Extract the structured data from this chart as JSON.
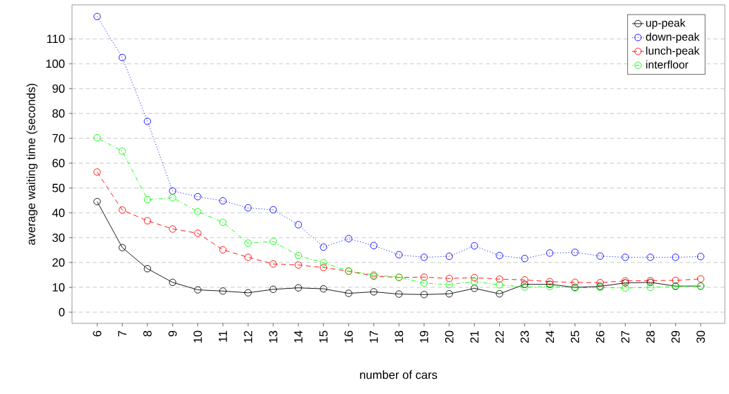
{
  "chart_data": {
    "type": "line",
    "xlabel": "number of cars",
    "ylabel": "average waiting time (seconds)",
    "categories": [
      "6",
      "7",
      "8",
      "9",
      "10",
      "11",
      "12",
      "13",
      "14",
      "15",
      "16",
      "17",
      "18",
      "19",
      "20",
      "21",
      "22",
      "23",
      "24",
      "25",
      "26",
      "27",
      "28",
      "29",
      "30"
    ],
    "series": [
      {
        "name": "up-peak",
        "color": "#000000",
        "line_style": "solid",
        "values": [
          44.5,
          26,
          17.5,
          12,
          9,
          8.5,
          7.8,
          9.2,
          9.8,
          9.4,
          7.6,
          8.2,
          7.3,
          7.1,
          7.4,
          9.6,
          7.4,
          11.2,
          11.2,
          10,
          10.4,
          11.8,
          12,
          10.5,
          10.5
        ]
      },
      {
        "name": "down-peak",
        "color": "#0000ff",
        "line_style": "dotted",
        "values": [
          119,
          102.5,
          76.8,
          48.8,
          46.5,
          44.8,
          42,
          41.2,
          35.2,
          26.2,
          29.6,
          26.8,
          23.1,
          22.1,
          22.5,
          26.7,
          22.8,
          21.6,
          23.8,
          24.1,
          22.6,
          22.1,
          22.1,
          22.1,
          22.4
        ]
      },
      {
        "name": "lunch-peak",
        "color": "#ff0000",
        "line_style": "dashed",
        "values": [
          56.4,
          41.1,
          36.8,
          33.5,
          31.8,
          25.1,
          22.1,
          19.4,
          19.0,
          18.0,
          16.5,
          14.5,
          14.0,
          14.1,
          13.6,
          13.9,
          13.3,
          13.0,
          12.3,
          12.0,
          11.9,
          12.6,
          12.7,
          12.8,
          13.4
        ]
      },
      {
        "name": "interfloor",
        "color": "#00ff00",
        "line_style": "dashdot",
        "values": [
          70.2,
          64.8,
          45.3,
          46.1,
          40.5,
          36.2,
          27.8,
          28.5,
          22.8,
          19.9,
          16.6,
          15.0,
          14.1,
          11.7,
          11.1,
          12.3,
          11.0,
          10.1,
          10.3,
          9.8,
          9.9,
          9.7,
          10.0,
          10.3,
          10.5
        ]
      }
    ],
    "ylim": [
      -4.5,
      123.7
    ],
    "yticks": [
      0,
      10,
      20,
      30,
      40,
      50,
      60,
      70,
      80,
      90,
      100,
      110
    ],
    "grid": "y",
    "legend": "top right",
    "marker": "circle"
  }
}
